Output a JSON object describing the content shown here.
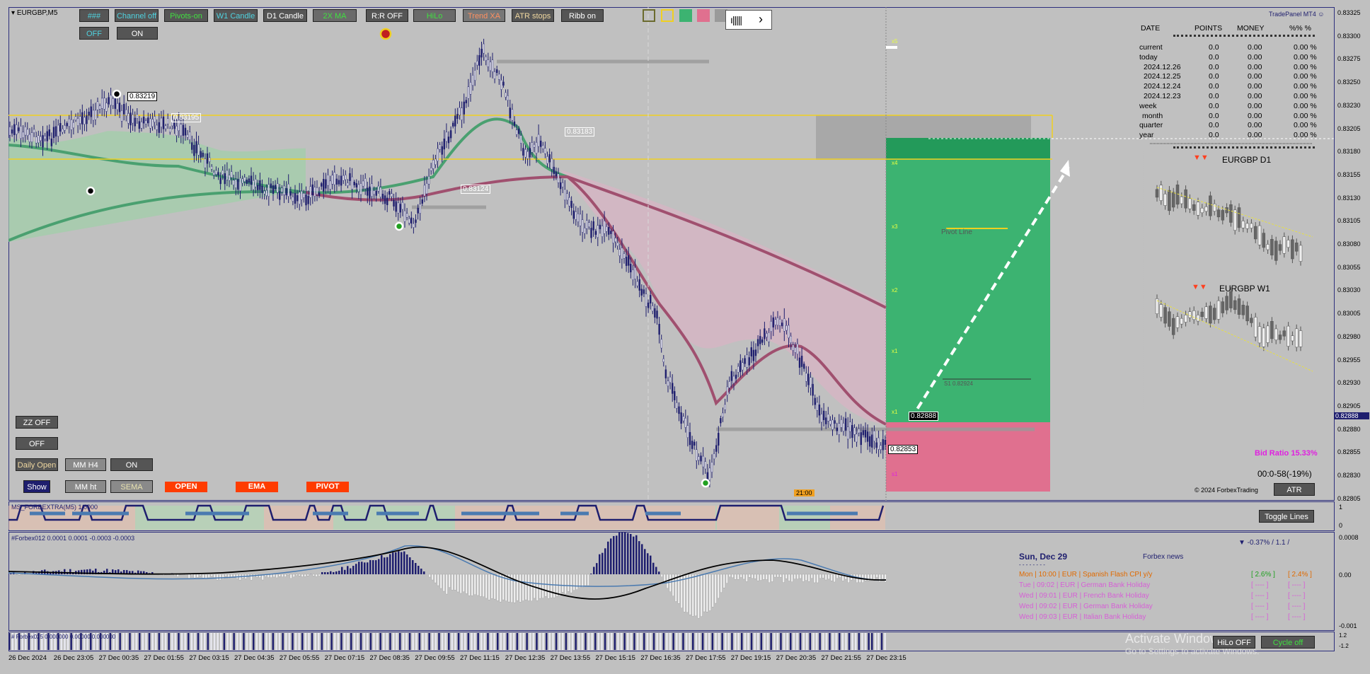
{
  "symbol": "EURGBP,M5",
  "toolbar": {
    "buttons": [
      "###",
      "Channel off",
      "Pivots-on",
      "W1 Candle",
      "D1 Candle",
      "2X MA",
      "R:R OFF",
      "HiLo",
      "Trend XA",
      "ATR stops",
      "Ribb on"
    ],
    "off_label": "OFF",
    "on_label": "ON",
    "nav_bars_icon": "bars-icon",
    "nav_next_icon": "chevron-right-icon"
  },
  "left_panel": {
    "zz_off": "ZZ OFF",
    "off": "OFF",
    "daily_open": "Daily Open",
    "mm_h4": "MM H4",
    "on": "ON",
    "show": "Show",
    "mm_ht": "MM ht",
    "sema": "SEMA",
    "open": "OPEN",
    "ema": "EMA",
    "pivot": "PIVOT"
  },
  "price_tags": {
    "p1": "0.83219",
    "p2": "0.83195",
    "p3": "0.83183",
    "p4": "0.83124",
    "current": "0.82888",
    "low": "0.82853",
    "pivot_line": "Pivot Line",
    "sl_label": "S1 0.82924",
    "time_tag": "21:00",
    "levels": [
      "x5",
      "x4",
      "x3",
      "x2",
      "x1",
      "x1",
      "s1"
    ]
  },
  "price_axis": [
    "0.83325",
    "0.83300",
    "0.83275",
    "0.83250",
    "0.83230",
    "0.83205",
    "0.83180",
    "0.83155",
    "0.83130",
    "0.83105",
    "0.83080",
    "0.83055",
    "0.83030",
    "0.83005",
    "0.82980",
    "0.82955",
    "0.82930",
    "0.82905",
    "0.82880",
    "0.82855",
    "0.82830",
    "0.82805"
  ],
  "current_price_axis": "0.82888",
  "trade_panel": {
    "title": "TradePanel MT4",
    "headers": [
      "DATE",
      "POINTS",
      "MONEY",
      "%%  %"
    ],
    "rows": [
      {
        "d": "current",
        "p": "0.0",
        "m": "0.00",
        "pc": "0.00 %"
      },
      {
        "d": "today",
        "p": "0.0",
        "m": "0.00",
        "pc": "0.00 %"
      },
      {
        "d": "2024.12.26",
        "p": "0.0",
        "m": "0.00",
        "pc": "0.00 %"
      },
      {
        "d": "2024.12.25",
        "p": "0.0",
        "m": "0.00",
        "pc": "0.00 %"
      },
      {
        "d": "2024.12.24",
        "p": "0.0",
        "m": "0.00",
        "pc": "0.00 %"
      },
      {
        "d": "2024.12.23",
        "p": "0.0",
        "m": "0.00",
        "pc": "0.00 %"
      },
      {
        "d": "week",
        "p": "0.0",
        "m": "0.00",
        "pc": "0.00 %"
      },
      {
        "d": "month",
        "p": "0.0",
        "m": "0.00",
        "pc": "0.00 %"
      },
      {
        "d": "quarter",
        "p": "0.0",
        "m": "0.00",
        "pc": "0.00 %"
      },
      {
        "d": "year",
        "p": "0.0",
        "m": "0.00",
        "pc": "0.00 %"
      }
    ],
    "d1_title": "EURGBP  D1",
    "w1_title": "EURGBP  W1",
    "bid_ratio": "Bid Ratio 15.33%",
    "timer": "00:0-58(-19%)",
    "copyright": "© 2024 ForbexTrading",
    "atr": "ATR"
  },
  "sub1": {
    "label": "MS_FORBEXTRA(M5) 1.0000",
    "toggle": "Toggle Lines",
    "axis": [
      "1",
      "0"
    ]
  },
  "sub2": {
    "label": "#Forbex012 0.0001 0.0001 -0.0003 -0.0003",
    "axis": [
      "0.0008",
      "0.00",
      "-0.001"
    ],
    "change": "▼ -0.37% / 1.1 /"
  },
  "news": {
    "date": "Sun, Dec 29",
    "title": "Forbex news",
    "items": [
      {
        "t": "Mon  |  10:00  |  EUR  |  Spanish Flash CPI y/y",
        "a": "[ 2.6% ]",
        "b": "[ 2.4% ]",
        "color": "#e06a00"
      },
      {
        "t": "Tue  |  09:02  |  EUR  |  German Bank Holiday",
        "a": "[ ---- ]",
        "b": "[ ---- ]",
        "color": "#d65fd6"
      },
      {
        "t": "Wed  |  09:01  |  EUR  |  French Bank Holiday",
        "a": "[ ---- ]",
        "b": "[ ---- ]",
        "color": "#d65fd6"
      },
      {
        "t": "Wed  |  09:02  |  EUR  |  German Bank Holiday",
        "a": "[ ---- ]",
        "b": "[ ---- ]",
        "color": "#d65fd6"
      },
      {
        "t": "Wed  |  09:03  |  EUR  |  Italian Bank Holiday",
        "a": "[ ---- ]",
        "b": "[ ---- ]",
        "color": "#d65fd6"
      }
    ]
  },
  "sub3": {
    "label": "# Forbex025 0.000000 0.00000 0.000000",
    "axis": [
      "1.2",
      "-1.2"
    ],
    "hilo_off": "HiLo OFF",
    "cycle_off": "Cycle off",
    "watermark1": "Activate Windows",
    "watermark2": "Go to Settings to activate Windows."
  },
  "time_axis": [
    "26 Dec 2024",
    "26 Dec 23:05",
    "27 Dec 00:35",
    "27 Dec 01:55",
    "27 Dec 03:15",
    "27 Dec 04:35",
    "27 Dec 05:55",
    "27 Dec 07:15",
    "27 Dec 08:35",
    "27 Dec 09:55",
    "27 Dec 11:15",
    "27 Dec 12:35",
    "27 Dec 13:55",
    "27 Dec 15:15",
    "27 Dec 16:35",
    "27 Dec 17:55",
    "27 Dec 19:15",
    "27 Dec 20:35",
    "27 Dec 21:55",
    "27 Dec 23:15"
  ],
  "colors": {
    "bg": "#c0c0c0",
    "bull": "#1e1e6e",
    "tp_zone": "#3cb371",
    "sl_zone": "#e0708f",
    "ma_green": "#4aa070",
    "ma_purple": "#b05a8a",
    "yellow": "#f0d020"
  }
}
